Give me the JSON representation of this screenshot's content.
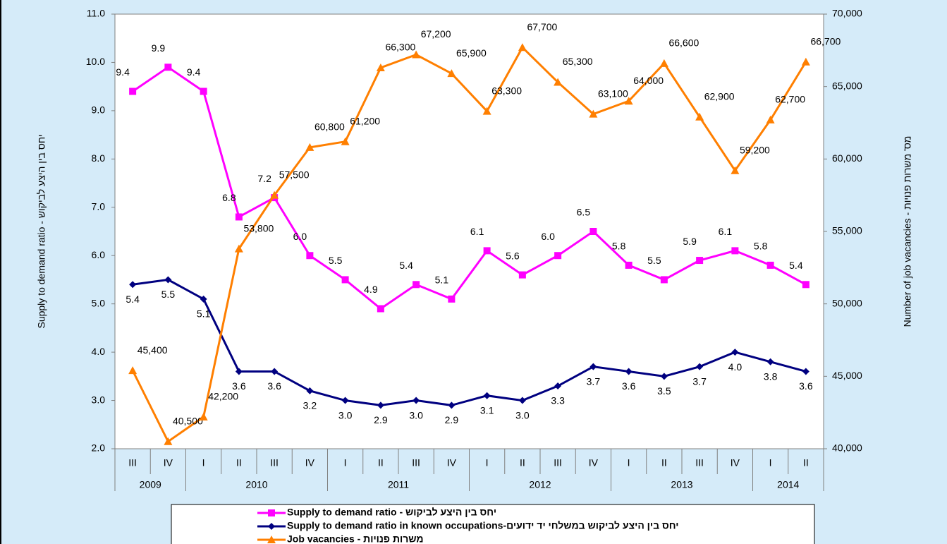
{
  "chart_data": {
    "type": "line",
    "y_label": "Supply to demand ratio - יחס בין היצע לביקוש",
    "y2_label": "Number of job vacancies - מס' משרות פנויות",
    "categories": [
      "III",
      "IV",
      "I",
      "II",
      "III",
      "IV",
      "I",
      "II",
      "III",
      "IV",
      "I",
      "II",
      "III",
      "IV",
      "I",
      "II",
      "III",
      "IV",
      "I",
      "II"
    ],
    "groups": [
      {
        "name": "2009",
        "count": 2
      },
      {
        "name": "2010",
        "count": 4
      },
      {
        "name": "2011",
        "count": 4
      },
      {
        "name": "2012",
        "count": 4
      },
      {
        "name": "2013",
        "count": 4
      },
      {
        "name": "2014",
        "count": 2
      }
    ],
    "ylim": [
      2,
      11
    ],
    "yticks": [
      {
        "value": 2,
        "label": "2.0"
      },
      {
        "value": 3,
        "label": "3.0"
      },
      {
        "value": 4,
        "label": "4.0"
      },
      {
        "value": 5,
        "label": "5.0"
      },
      {
        "value": 6,
        "label": "6.0"
      },
      {
        "value": 7,
        "label": "7.0"
      },
      {
        "value": 8,
        "label": "8.0"
      },
      {
        "value": 9,
        "label": "9.0"
      },
      {
        "value": 10,
        "label": "10.0"
      },
      {
        "value": 11,
        "label": "11.0"
      }
    ],
    "y2lim": [
      40000,
      70000
    ],
    "y2ticks": [
      {
        "value": 40000,
        "label": "40,000"
      },
      {
        "value": 45000,
        "label": "45,000"
      },
      {
        "value": 50000,
        "label": "50,000"
      },
      {
        "value": 55000,
        "label": "55,000"
      },
      {
        "value": 60000,
        "label": "60,000"
      },
      {
        "value": 65000,
        "label": "65,000"
      },
      {
        "value": 70000,
        "label": "70,000"
      }
    ],
    "series": [
      {
        "name": "Supply to demand ratio - יחס בין היצע לביקוש",
        "color": "#ff00ff",
        "marker": "square",
        "values": [
          9.4,
          9.9,
          9.4,
          6.8,
          7.2,
          6.0,
          5.5,
          4.9,
          5.4,
          5.1,
          6.1,
          5.6,
          6.0,
          6.5,
          5.8,
          5.5,
          5.9,
          6.1,
          5.8,
          5.4
        ],
        "value_labels": [
          "9.4",
          "9.9",
          "9.4",
          "6.8",
          "7.2",
          "6.0",
          "5.5",
          "4.9",
          "5.4",
          "5.1",
          "6.1",
          "5.6",
          "6.0",
          "6.5",
          "5.8",
          "5.5",
          "5.9",
          "6.1",
          "5.8",
          "5.4"
        ]
      },
      {
        "name": "Supply to demand ratio in known occupations-יחס בין היצע לביקוש במשלחי יד ידועים",
        "color": "#000080",
        "marker": "diamond",
        "values": [
          5.4,
          5.5,
          5.1,
          3.6,
          3.6,
          3.2,
          3.0,
          2.9,
          3.0,
          2.9,
          3.1,
          3.0,
          3.3,
          3.7,
          3.6,
          3.5,
          3.7,
          4.0,
          3.8,
          3.6
        ],
        "value_labels": [
          "5.4",
          "5.5",
          "5.1",
          "3.6",
          "3.6",
          "3.2",
          "3.0",
          "2.9",
          "3.0",
          "2.9",
          "3.1",
          "3.0",
          "3.3",
          "3.7",
          "3.6",
          "3.5",
          "3.7",
          "4.0",
          "3.8",
          "3.6"
        ]
      },
      {
        "name": "Job vacancies - משרות פנויות",
        "color": "#ff7f00",
        "marker": "triangle",
        "axis": "y2",
        "values": [
          45400,
          40500,
          42200,
          53800,
          57500,
          60800,
          61200,
          66300,
          67200,
          65900,
          63300,
          67700,
          65300,
          63100,
          64000,
          66600,
          62900,
          59200,
          62700,
          66700
        ],
        "value_labels": [
          "45,400",
          "40,500",
          "42,200",
          "53,800",
          "57,500",
          "60,800",
          "61,200",
          "66,300",
          "67,200",
          "65,900",
          "63,300",
          "67,700",
          "65,300",
          "63,100",
          "64,000",
          "66,600",
          "62,900",
          "59,200",
          "62,700",
          "66,700"
        ]
      }
    ]
  }
}
